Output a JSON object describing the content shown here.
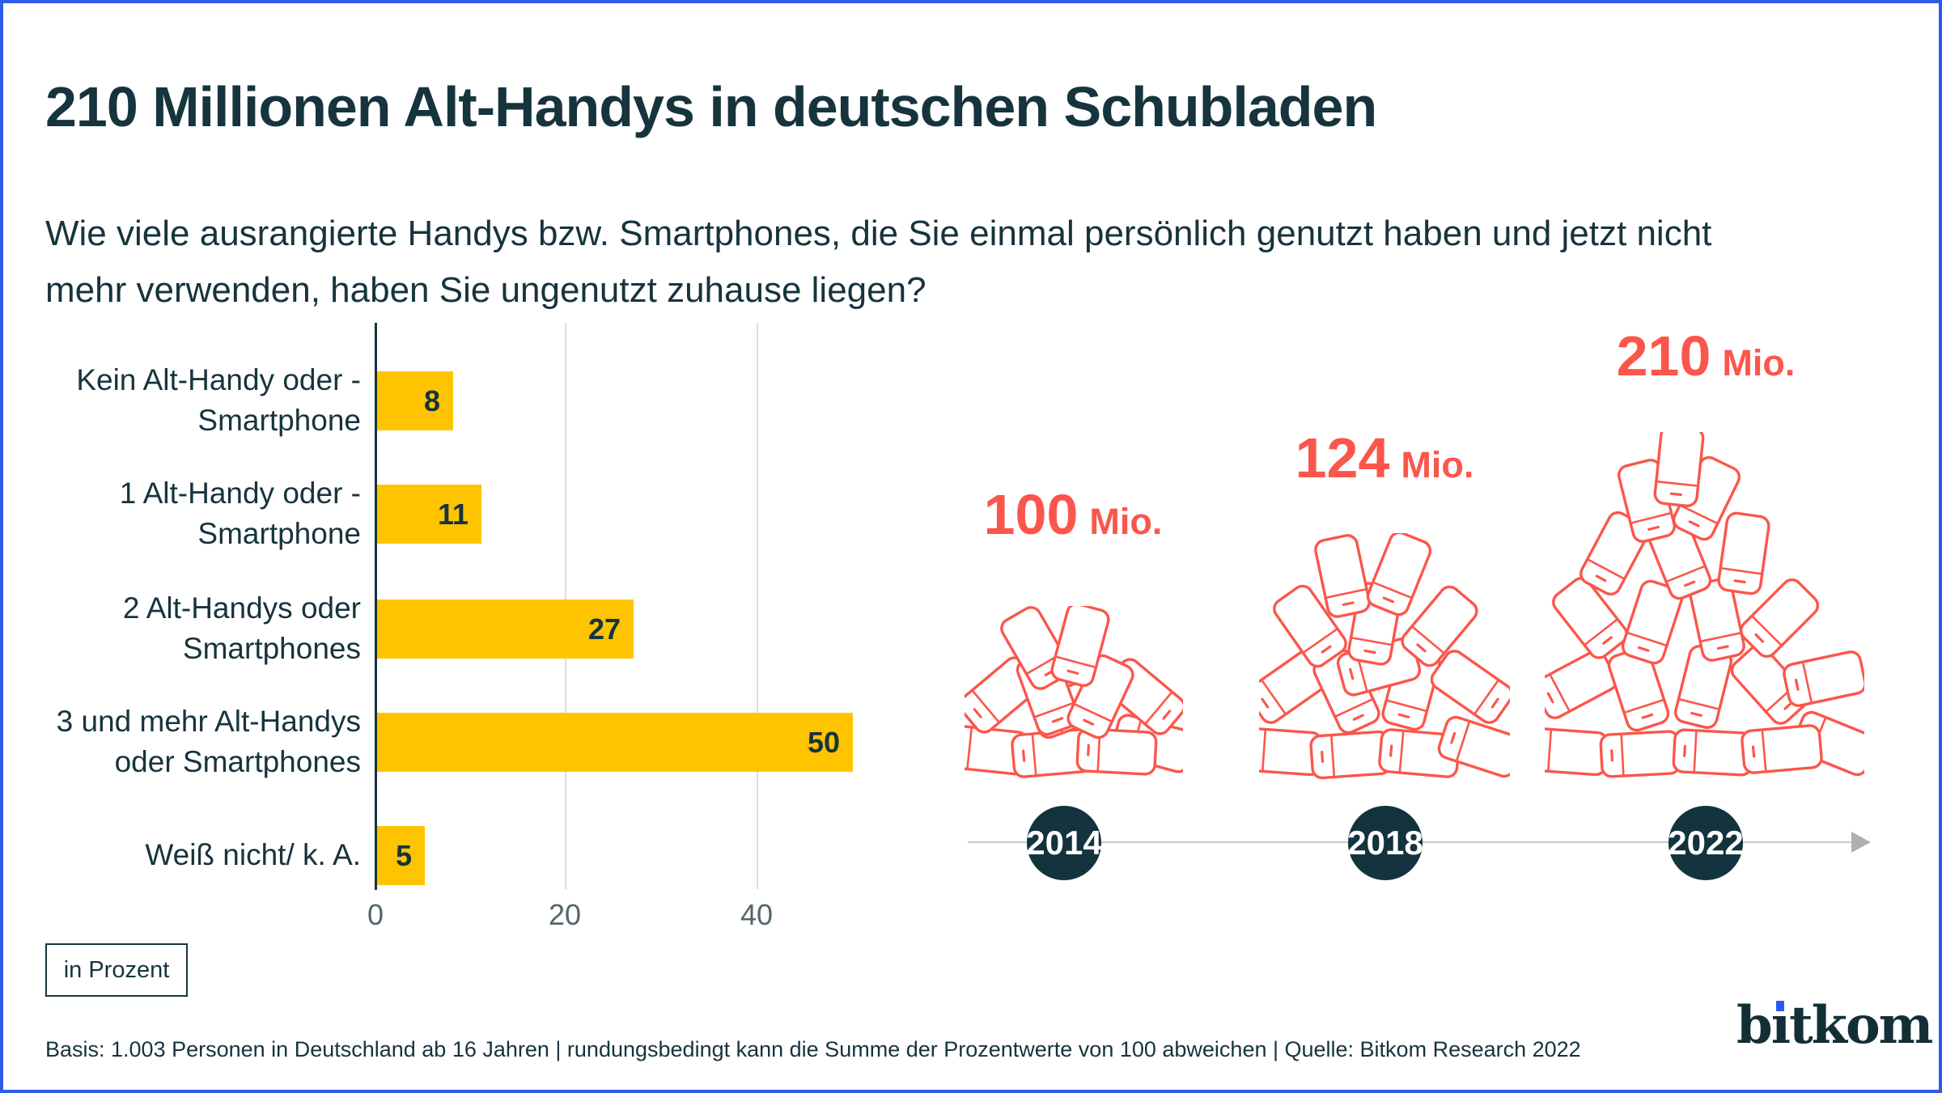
{
  "header": {
    "title": "210 Millionen Alt-Handys in deutschen Schubladen",
    "subtitle_line1": "Wie viele ausrangierte Handys bzw. Smartphones, die Sie einmal persönlich genutzt haben und jetzt nicht",
    "subtitle_line2": "mehr verwenden, haben Sie ungenutzt zuhause liegen?"
  },
  "legend": {
    "label": "in Prozent"
  },
  "footer": {
    "note": "Basis: 1.003 Personen in Deutschland ab 16 Jahren | rundungsbedingt kann die Summe der Prozentwerte von 100 abweichen | Quelle: Bitkom Research 2022"
  },
  "logo": {
    "text": "bitkom",
    "pre": "b",
    "i_dotless": "ı",
    "post": "tkom"
  },
  "colors": {
    "dark": "#16343D",
    "bar_yellow": "#FFC400",
    "coral": "#FB564B",
    "frame_border_blue": "#2F5BE8",
    "logo_dot_blue": "#2B57F2",
    "gridline_gray": "#DCDCDC",
    "timeline_gray": "#C8C8C8"
  },
  "chart_data": [
    {
      "type": "bar",
      "orientation": "horizontal",
      "title": "210 Millionen Alt-Handys in deutschen Schubladen",
      "categories": [
        "Kein Alt-Handy oder -Smartphone",
        "1 Alt-Handy oder -Smartphone",
        "2 Alt-Handys oder Smartphones",
        "3 und mehr Alt-Handys oder Smartphones",
        "Weiß nicht/ k. A."
      ],
      "values": [
        8,
        11,
        27,
        50,
        5
      ],
      "unit": "Prozent",
      "xlim": [
        0,
        53
      ],
      "xticks": [
        0,
        20,
        40
      ],
      "xtick_labels": [
        "0",
        "20",
        "40"
      ],
      "bar_color": "#FFC400",
      "grid": "vertical-light"
    },
    {
      "type": "pictorial_bar",
      "icon": "smartphone-pile",
      "categories": [
        "2014",
        "2018",
        "2022"
      ],
      "values": [
        100,
        124,
        210
      ],
      "unit": "Mio.",
      "value_labels": [
        "100 Mio.",
        "124 Mio.",
        "210 Mio."
      ],
      "color": "#FB564B",
      "legend_position": "none"
    }
  ]
}
